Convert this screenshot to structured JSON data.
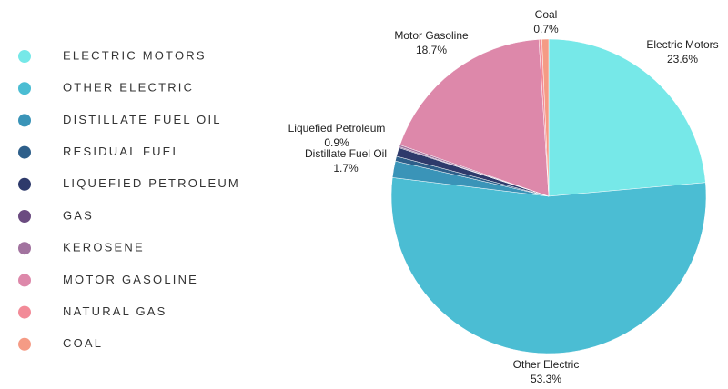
{
  "chart_data": {
    "type": "pie",
    "categories": [
      "Electric Motors",
      "Other Electric",
      "Distillate Fuel Oil",
      "Residual Fuel",
      "Liquefied Petroleum",
      "Gas",
      "Kerosene",
      "Motor Gasoline",
      "Natural Gas",
      "Coal"
    ],
    "values": [
      23.6,
      53.3,
      1.7,
      0.5,
      0.9,
      0.1,
      0.2,
      18.7,
      0.3,
      0.7
    ],
    "value_labels": [
      "23.6%",
      "53.3%",
      "1.7%",
      null,
      "0.9%",
      null,
      null,
      "18.7%",
      null,
      "0.7%"
    ],
    "colors": [
      "#76e8e8",
      "#4bbdd3",
      "#3a94b8",
      "#2e5f8a",
      "#2e3a6b",
      "#6b4b80",
      "#a2739f",
      "#dd88aa",
      "#f28b98",
      "#f59b85"
    ],
    "legend": "left"
  }
}
